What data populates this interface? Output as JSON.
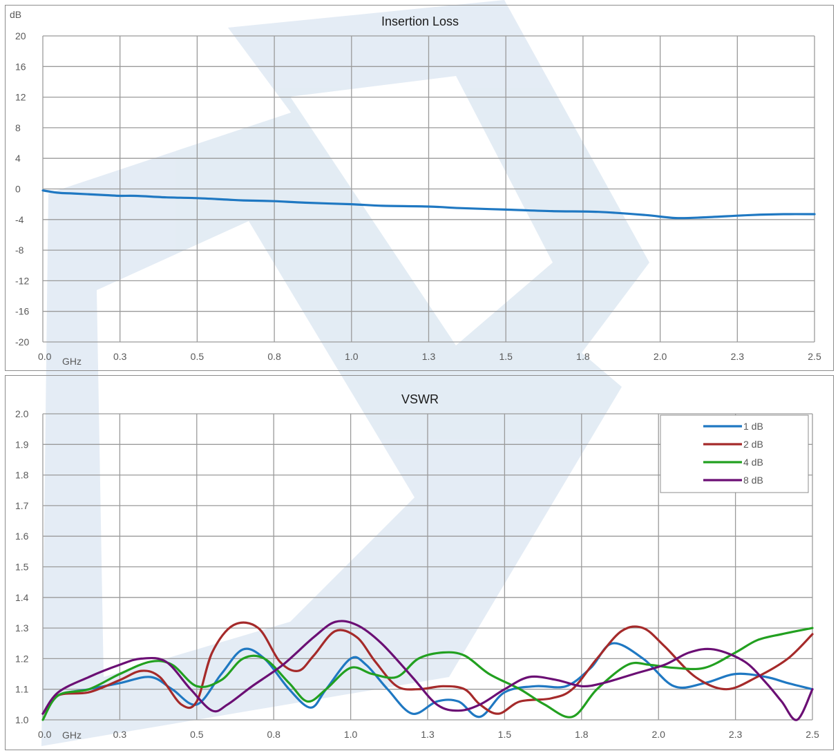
{
  "colors": {
    "watermark": "#dfe9f3",
    "grid": "#9a9a9a",
    "s1": "#1f78c2",
    "s2": "#a52a2a",
    "s4": "#22a020",
    "s8": "#6b0f74"
  },
  "chart_data": [
    {
      "type": "line",
      "title": "Insertion Loss",
      "ylabel": "dB",
      "xlabel": "",
      "x_unit_label": "GHz",
      "xlim": [
        0,
        2.5
      ],
      "ylim": [
        -20,
        20
      ],
      "x_tick_labels": [
        "0.0",
        "0.3",
        "0.5",
        "0.8",
        "1.0",
        "1.3",
        "1.5",
        "1.8",
        "2.0",
        "2.3",
        "2.5"
      ],
      "y_tick_labels": [
        "20",
        "16",
        "12",
        "8",
        "4",
        "0",
        "-4",
        "-8",
        "-12",
        "-16",
        "-20"
      ],
      "grid": true,
      "series": [
        {
          "x": [
            0,
            0.05,
            0.1,
            0.2,
            0.25,
            0.3,
            0.4,
            0.5,
            0.6,
            0.65,
            0.75,
            0.85,
            1.0,
            1.1,
            1.25,
            1.35,
            1.5,
            1.65,
            1.8,
            1.95,
            2.05,
            2.15,
            2.3,
            2.4,
            2.5
          ],
          "y": [
            -0.2,
            -0.5,
            -0.6,
            -0.8,
            -0.9,
            -0.9,
            -1.1,
            -1.2,
            -1.4,
            -1.5,
            -1.6,
            -1.8,
            -2.0,
            -2.2,
            -2.3,
            -2.5,
            -2.7,
            -2.9,
            -3.0,
            -3.4,
            -3.8,
            -3.7,
            -3.4,
            -3.3,
            -3.3
          ]
        }
      ]
    },
    {
      "type": "line",
      "title": "VSWR",
      "x_unit_label": "GHz",
      "xlim": [
        0,
        2.5
      ],
      "ylim": [
        1.0,
        2.0
      ],
      "x_tick_labels": [
        "0.0",
        "0.3",
        "0.5",
        "0.8",
        "1.0",
        "1.3",
        "1.5",
        "1.8",
        "2.0",
        "2.3",
        "2.5"
      ],
      "y_tick_labels": [
        "2.0",
        "1.9",
        "1.8",
        "1.7",
        "1.6",
        "1.5",
        "1.4",
        "1.3",
        "1.2",
        "1.1",
        "1.0"
      ],
      "grid": true,
      "legend": "top-right",
      "series": [
        {
          "name": "1 dB",
          "x": [
            0,
            0.05,
            0.15,
            0.25,
            0.35,
            0.42,
            0.5,
            0.58,
            0.65,
            0.72,
            0.8,
            0.87,
            0.92,
            1.0,
            1.05,
            1.12,
            1.2,
            1.28,
            1.35,
            1.42,
            1.5,
            1.6,
            1.7,
            1.78,
            1.85,
            1.95,
            2.05,
            2.15,
            2.25,
            2.35,
            2.42,
            2.5
          ],
          "y": [
            1.02,
            1.08,
            1.1,
            1.12,
            1.14,
            1.1,
            1.05,
            1.15,
            1.23,
            1.2,
            1.1,
            1.04,
            1.1,
            1.2,
            1.18,
            1.1,
            1.02,
            1.06,
            1.06,
            1.01,
            1.09,
            1.11,
            1.11,
            1.17,
            1.25,
            1.2,
            1.11,
            1.12,
            1.15,
            1.14,
            1.12,
            1.1
          ]
        },
        {
          "name": "2 dB",
          "x": [
            0,
            0.05,
            0.15,
            0.25,
            0.32,
            0.38,
            0.45,
            0.5,
            0.55,
            0.62,
            0.7,
            0.77,
            0.83,
            0.88,
            0.95,
            1.02,
            1.08,
            1.15,
            1.22,
            1.3,
            1.37,
            1.42,
            1.48,
            1.55,
            1.65,
            1.72,
            1.8,
            1.88,
            1.95,
            2.02,
            2.12,
            2.22,
            2.32,
            2.42,
            2.5
          ],
          "y": [
            1.02,
            1.08,
            1.09,
            1.13,
            1.16,
            1.14,
            1.05,
            1.06,
            1.22,
            1.31,
            1.3,
            1.19,
            1.16,
            1.21,
            1.29,
            1.27,
            1.19,
            1.11,
            1.1,
            1.11,
            1.1,
            1.05,
            1.02,
            1.06,
            1.07,
            1.1,
            1.2,
            1.29,
            1.3,
            1.24,
            1.14,
            1.1,
            1.14,
            1.2,
            1.28
          ]
        },
        {
          "name": "4 dB",
          "x": [
            0,
            0.05,
            0.15,
            0.25,
            0.35,
            0.42,
            0.5,
            0.58,
            0.65,
            0.72,
            0.8,
            0.86,
            0.92,
            1.0,
            1.07,
            1.15,
            1.22,
            1.3,
            1.37,
            1.45,
            1.55,
            1.63,
            1.72,
            1.8,
            1.9,
            1.97,
            2.05,
            2.15,
            2.25,
            2.32,
            2.4,
            2.5
          ],
          "y": [
            1.0,
            1.08,
            1.1,
            1.15,
            1.19,
            1.18,
            1.11,
            1.13,
            1.2,
            1.2,
            1.12,
            1.06,
            1.1,
            1.17,
            1.15,
            1.14,
            1.2,
            1.22,
            1.21,
            1.15,
            1.1,
            1.05,
            1.01,
            1.1,
            1.18,
            1.18,
            1.17,
            1.17,
            1.22,
            1.26,
            1.28,
            1.3
          ]
        },
        {
          "name": "8 dB",
          "x": [
            0,
            0.05,
            0.15,
            0.25,
            0.32,
            0.4,
            0.48,
            0.55,
            0.6,
            0.68,
            0.78,
            0.88,
            0.95,
            1.02,
            1.1,
            1.2,
            1.28,
            1.35,
            1.42,
            1.5,
            1.58,
            1.67,
            1.75,
            1.82,
            1.92,
            2.02,
            2.1,
            2.18,
            2.28,
            2.35,
            2.4,
            2.45,
            2.5
          ],
          "y": [
            1.02,
            1.09,
            1.14,
            1.18,
            1.2,
            1.19,
            1.1,
            1.03,
            1.05,
            1.11,
            1.18,
            1.27,
            1.32,
            1.31,
            1.25,
            1.14,
            1.05,
            1.03,
            1.05,
            1.1,
            1.14,
            1.13,
            1.11,
            1.12,
            1.15,
            1.18,
            1.22,
            1.23,
            1.19,
            1.12,
            1.06,
            1.0,
            1.1
          ]
        }
      ]
    }
  ]
}
